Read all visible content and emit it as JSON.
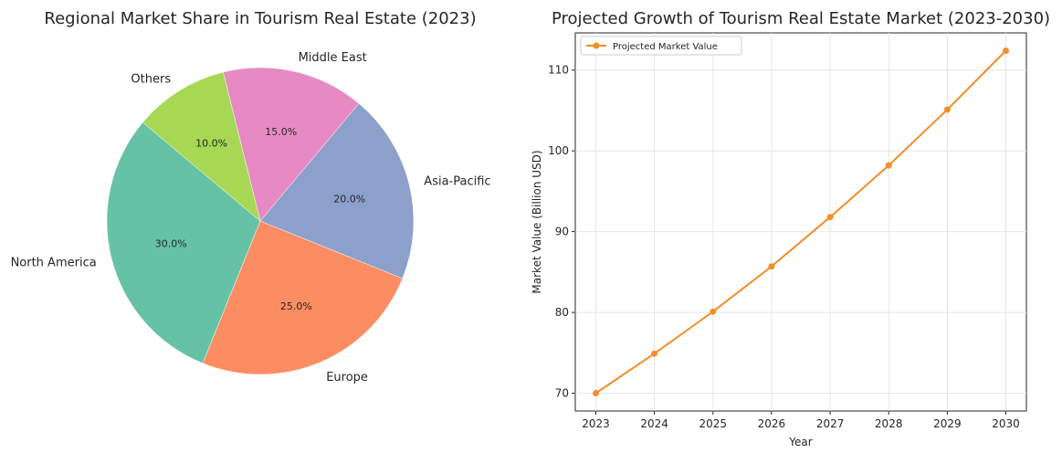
{
  "chart_data": [
    {
      "type": "pie",
      "title": "Regional Market Share in Tourism Real Estate (2023)",
      "labels": [
        "North America",
        "Europe",
        "Asia-Pacific",
        "Middle East",
        "Others"
      ],
      "values": [
        30.0,
        25.0,
        20.0,
        15.0,
        10.0
      ],
      "pct_labels": [
        "30.0%",
        "25.0%",
        "20.0%",
        "15.0%",
        "10.0%"
      ],
      "colors": [
        "#66c2a5",
        "#fc8d62",
        "#8da0cb",
        "#e78ac3",
        "#a6d854"
      ],
      "start_angle_deg": 140,
      "direction": "counterclockwise"
    },
    {
      "type": "line",
      "title": "Projected Growth of Tourism Real Estate Market (2023-2030)",
      "xlabel": "Year",
      "ylabel": "Market Value (Billion USD)",
      "x": [
        2023,
        2024,
        2025,
        2026,
        2027,
        2028,
        2029,
        2030
      ],
      "series": [
        {
          "name": "Projected Market Value",
          "values": [
            70.0,
            74.9,
            80.1,
            85.7,
            91.8,
            98.2,
            105.1,
            112.4
          ],
          "color": "#f28e2b",
          "marker": "circle"
        }
      ],
      "xticks": [
        "2023",
        "2024",
        "2025",
        "2026",
        "2027",
        "2028",
        "2029",
        "2030"
      ],
      "yticks": [
        70,
        80,
        90,
        100,
        110
      ],
      "ylim": [
        67.8,
        114.6
      ],
      "grid": true,
      "legend": "top-left"
    }
  ]
}
